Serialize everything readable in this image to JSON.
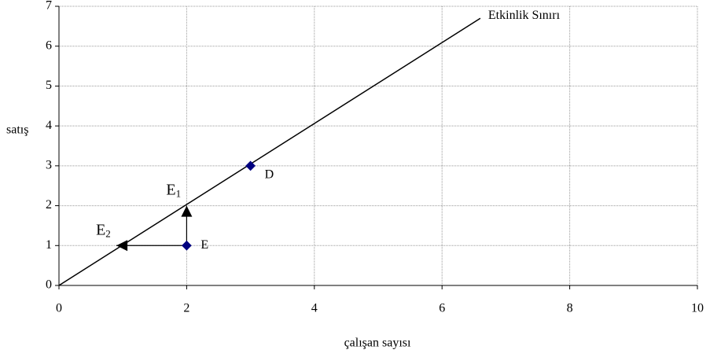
{
  "chart_data": {
    "type": "scatter",
    "x_label": "çalışan sayısı",
    "y_label": "satış",
    "xlim": [
      0,
      10
    ],
    "ylim": [
      0,
      7
    ],
    "xticks": [
      0,
      2,
      4,
      6,
      8,
      10
    ],
    "yticks": [
      0,
      1,
      2,
      3,
      4,
      5,
      6,
      7
    ],
    "grid": true,
    "frontier": {
      "name": "Etkinlik Sınırı",
      "color": "#000000",
      "x": [
        0,
        6.6
      ],
      "y": [
        0,
        6.7
      ]
    },
    "points": {
      "color": "#000080",
      "labels": [
        "D",
        "E"
      ],
      "x": [
        3,
        2
      ],
      "y": [
        3,
        1
      ]
    },
    "arrows": [
      {
        "label": "E",
        "sub": "1",
        "from": [
          2,
          1
        ],
        "to": [
          2,
          2
        ]
      },
      {
        "label": "E",
        "sub": "2",
        "from": [
          2,
          1
        ],
        "to": [
          0.9,
          1
        ]
      }
    ]
  }
}
